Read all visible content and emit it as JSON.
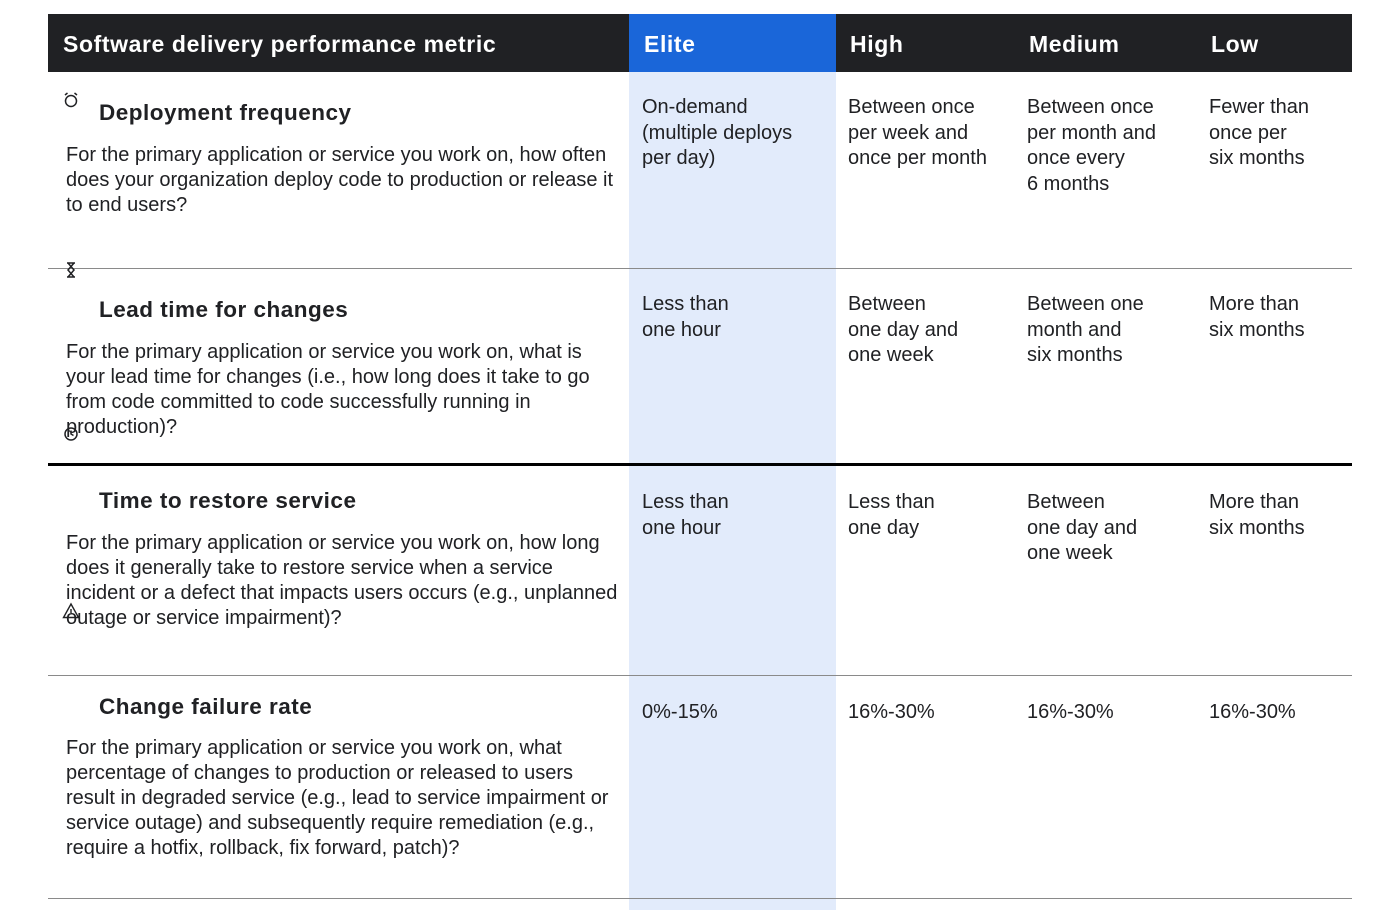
{
  "header": {
    "metric": "Software delivery performance metric",
    "elite": "Elite",
    "high": "High",
    "medium": "Medium",
    "low": "Low"
  },
  "rows": [
    {
      "icon": "alarm-clock-icon",
      "title": "Deployment frequency",
      "question": "For the primary application or service you work on, how often does your organization deploy code to production or release it to end users?",
      "elite": "On-demand\n(multiple deploys\nper day)",
      "high": "Between once\nper week and\nonce per month",
      "medium": "Between once\nper month and\nonce every\n6 months",
      "low": "Fewer than\nonce per\nsix months"
    },
    {
      "icon": "hourglass-icon",
      "title": "Lead time for changes",
      "question": "For the primary application or service you work on, what is your lead time for changes (i.e., how long does it take to go from code committed to code successfully running in production)?",
      "elite": "Less than\none hour",
      "high": "Between\none day and\none week",
      "medium": "Between one\nmonth and\nsix months",
      "low": "More than\nsix months"
    },
    {
      "icon": "restore-clock-icon",
      "title": "Time to restore service",
      "question": "For the primary application or service you work on, how long does it generally take to restore service when a service incident or a defect that impacts users occurs (e.g., unplanned outage or service impairment)?",
      "elite": "Less than\none hour",
      "high": "Less than\none day",
      "medium": "Between\none day and\none week",
      "low": "More than\nsix months"
    },
    {
      "icon": "warning-triangle-icon",
      "title": "Change failure rate",
      "question": "For the primary application or service you work on, what percentage of changes to production or released to users result in degraded service (e.g., lead to service impairment or service outage) and subsequently require remediation (e.g., require a hotfix, rollback, fix forward, patch)?",
      "elite": "0%-15%",
      "high": "16%-30%",
      "medium": "16%-30%",
      "low": "16%-30%"
    }
  ]
}
